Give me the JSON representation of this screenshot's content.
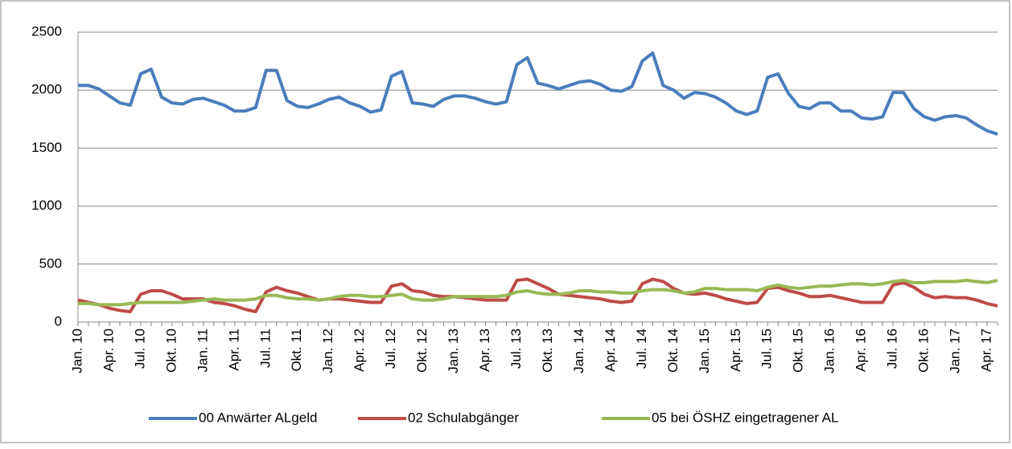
{
  "chart_data": {
    "type": "line",
    "categories": [
      "Jan. 10",
      null,
      null,
      "Apr. 10",
      null,
      null,
      "Jul. 10",
      null,
      null,
      "Okt. 10",
      null,
      null,
      "Jan. 11",
      null,
      null,
      "Apr. 11",
      null,
      null,
      "Jul. 11",
      null,
      null,
      "Okt. 11",
      null,
      null,
      "Jan. 12",
      null,
      null,
      "Apr. 12",
      null,
      null,
      "Jul. 12",
      null,
      null,
      "Okt. 12",
      null,
      null,
      "Jan. 13",
      null,
      null,
      "Apr. 13",
      null,
      null,
      "Jul. 13",
      null,
      null,
      "Okt. 13",
      null,
      null,
      "Jan. 14",
      null,
      null,
      "Apr. 14",
      null,
      null,
      "Jul. 14",
      null,
      null,
      "Okt. 14",
      null,
      null,
      "Jan. 15",
      null,
      null,
      "Apr. 15",
      null,
      null,
      "Jul. 15",
      null,
      null,
      "Okt. 15",
      null,
      null,
      "Jan. 16",
      null,
      null,
      "Apr. 16",
      null,
      null,
      "Jul. 16",
      null,
      null,
      "Okt. 16",
      null,
      null,
      "Jan. 17",
      null,
      null,
      "Apr. 17",
      null
    ],
    "series": [
      {
        "name": "00 Anwärter ALgeld",
        "color": "#4a7ebb",
        "values": [
          2040,
          2040,
          2010,
          1950,
          1890,
          1870,
          2140,
          2180,
          1940,
          1890,
          1880,
          1920,
          1930,
          1900,
          1870,
          1820,
          1820,
          1850,
          2170,
          2170,
          1910,
          1860,
          1850,
          1880,
          1920,
          1940,
          1890,
          1860,
          1810,
          1830,
          2120,
          2160,
          1890,
          1880,
          1860,
          1920,
          1950,
          1950,
          1930,
          1900,
          1880,
          1900,
          2220,
          2280,
          2060,
          2040,
          2010,
          2040,
          2070,
          2080,
          2050,
          2000,
          1990,
          2030,
          2250,
          2320,
          2040,
          2000,
          1930,
          1980,
          1970,
          1940,
          1890,
          1820,
          1790,
          1820,
          2110,
          2140,
          1970,
          1860,
          1840,
          1890,
          1890,
          1820,
          1820,
          1760,
          1750,
          1770,
          1980,
          1980,
          1840,
          1770,
          1740,
          1770,
          1780,
          1760,
          1700,
          1650,
          1620
        ]
      },
      {
        "name": "02 Schulabgänger",
        "color": "#be4b48",
        "values": [
          190,
          170,
          150,
          120,
          100,
          90,
          240,
          270,
          270,
          240,
          200,
          200,
          200,
          170,
          160,
          140,
          110,
          90,
          260,
          300,
          270,
          250,
          220,
          190,
          200,
          200,
          190,
          180,
          170,
          170,
          310,
          330,
          270,
          260,
          230,
          220,
          220,
          210,
          200,
          190,
          190,
          190,
          360,
          370,
          330,
          290,
          240,
          230,
          220,
          210,
          200,
          180,
          170,
          180,
          330,
          370,
          350,
          290,
          250,
          240,
          250,
          230,
          200,
          180,
          160,
          170,
          290,
          300,
          270,
          250,
          220,
          220,
          230,
          210,
          190,
          170,
          170,
          170,
          320,
          340,
          300,
          240,
          210,
          220,
          210,
          210,
          190,
          160,
          140
        ]
      },
      {
        "name": "05 bei ÖSHZ eingetragener AL",
        "color": "#98b954",
        "values": [
          160,
          160,
          150,
          150,
          150,
          160,
          170,
          170,
          170,
          170,
          170,
          180,
          190,
          200,
          190,
          190,
          190,
          200,
          230,
          230,
          210,
          200,
          200,
          190,
          200,
          220,
          230,
          230,
          220,
          220,
          230,
          240,
          200,
          190,
          190,
          200,
          220,
          220,
          220,
          220,
          220,
          230,
          260,
          270,
          250,
          240,
          240,
          250,
          270,
          270,
          260,
          260,
          250,
          250,
          270,
          280,
          280,
          270,
          250,
          260,
          290,
          290,
          280,
          280,
          280,
          270,
          300,
          320,
          300,
          290,
          300,
          310,
          310,
          320,
          330,
          330,
          320,
          330,
          350,
          360,
          340,
          340,
          350,
          350,
          350,
          360,
          350,
          340,
          360
        ]
      }
    ],
    "ylim": [
      0,
      2500
    ],
    "yticks": [
      0,
      500,
      1000,
      1500,
      2000,
      2500
    ],
    "grid": true,
    "legend": "bottom"
  }
}
